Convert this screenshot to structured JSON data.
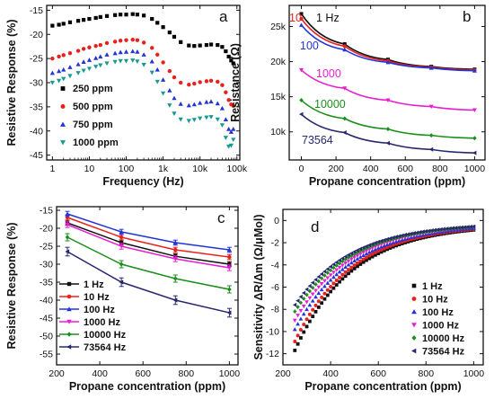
{
  "chart_data": [
    {
      "panel": "a",
      "type": "scatter",
      "title": "",
      "xlabel": "Frequency (Hz)",
      "ylabel": "Resistive Response (%)",
      "xscale": "log",
      "xlim": [
        0.7,
        120000
      ],
      "ylim": [
        -46,
        -14
      ],
      "xtick_values": [
        1,
        10,
        100,
        1000,
        10000,
        100000
      ],
      "xticks": [
        "1",
        "10",
        "100",
        "1k",
        "10k",
        "100k"
      ],
      "ytick_values": [
        -45,
        -40,
        -35,
        -30,
        -25,
        -20,
        -15
      ],
      "yticks": [
        "-45",
        "-40",
        "-35",
        "-30",
        "-25",
        "-20",
        "-15"
      ],
      "legend_position": "bottom-left",
      "x": [
        1,
        1.5,
        2,
        3,
        5,
        7,
        10,
        15,
        20,
        30,
        50,
        70,
        100,
        150,
        200,
        300,
        500,
        700,
        1000,
        1500,
        2000,
        3000,
        5000,
        7000,
        10000,
        15000,
        20000,
        30000,
        40000,
        50000,
        60000,
        70000,
        80000
      ],
      "series": [
        {
          "name": "250 ppm",
          "color": "#000000",
          "marker": "square",
          "values": [
            -18.2,
            -18.0,
            -17.8,
            -17.5,
            -17.2,
            -17.0,
            -16.8,
            -16.6,
            -16.4,
            -16.2,
            -16.0,
            -15.9,
            -15.9,
            -15.8,
            -15.9,
            -16.1,
            -16.8,
            -17.6,
            -18.5,
            -19.6,
            -20.5,
            -21.6,
            -22.3,
            -22.4,
            -22.3,
            -22.2,
            -22.1,
            -22.2,
            -22.6,
            -23.5,
            -24.6,
            -25.4,
            -26.0
          ]
        },
        {
          "name": "500 ppm",
          "color": "#e8211d",
          "marker": "circle",
          "values": [
            -25.0,
            -24.6,
            -24.3,
            -23.9,
            -23.4,
            -23.0,
            -22.7,
            -22.4,
            -22.2,
            -21.8,
            -21.5,
            -21.3,
            -21.2,
            -21.1,
            -21.2,
            -21.7,
            -22.8,
            -24.2,
            -25.8,
            -27.6,
            -28.9,
            -30.0,
            -30.4,
            -30.2,
            -29.9,
            -29.7,
            -29.6,
            -29.8,
            -30.5,
            -32.0,
            -33.6,
            -34.5,
            -34.8
          ]
        },
        {
          "name": "750 ppm",
          "color": "#2233d8",
          "marker": "triangle-up",
          "values": [
            -28.0,
            -27.6,
            -27.3,
            -26.8,
            -26.2,
            -25.7,
            -25.3,
            -24.9,
            -24.6,
            -24.2,
            -23.9,
            -23.7,
            -23.6,
            -23.5,
            -23.6,
            -24.2,
            -25.6,
            -27.3,
            -29.4,
            -31.6,
            -33.2,
            -34.4,
            -34.7,
            -34.5,
            -34.2,
            -34.0,
            -33.9,
            -34.3,
            -35.3,
            -37.6,
            -39.6,
            -40.2,
            -39.6
          ]
        },
        {
          "name": "1000 ppm",
          "color": "#179a8e",
          "marker": "triangle-down",
          "values": [
            -30.0,
            -29.6,
            -29.2,
            -28.6,
            -28.0,
            -27.5,
            -27.1,
            -26.7,
            -26.4,
            -26.0,
            -25.7,
            -25.5,
            -25.5,
            -25.4,
            -25.6,
            -26.3,
            -27.9,
            -29.8,
            -32.2,
            -34.7,
            -36.4,
            -37.6,
            -37.9,
            -37.7,
            -37.4,
            -37.2,
            -37.1,
            -37.6,
            -38.8,
            -41.4,
            -43.2,
            -43.0,
            -41.8
          ]
        }
      ]
    },
    {
      "panel": "b",
      "type": "line",
      "title": "",
      "xlabel": "Propane concentration (ppm)",
      "ylabel": "Resistance (Ω)",
      "xlim": [
        -70,
        1060
      ],
      "ylim": [
        6000,
        28000
      ],
      "xticks": [
        0,
        200,
        400,
        600,
        800,
        1000
      ],
      "ytick_values": [
        10000,
        15000,
        20000,
        25000
      ],
      "yticks": [
        "10k",
        "15k",
        "20k",
        "25k"
      ],
      "x": [
        0,
        250,
        500,
        750,
        1000
      ],
      "series": [
        {
          "name": "1 Hz",
          "color": "#111111",
          "marker": "square",
          "values": [
            26800,
            22500,
            20300,
            19300,
            18900
          ]
        },
        {
          "name": "10",
          "color": "#e8211d",
          "marker": "circle",
          "values": [
            26100,
            22200,
            20100,
            19200,
            18800
          ]
        },
        {
          "name": "100",
          "color": "#2233d8",
          "marker": "triangle-up",
          "values": [
            25200,
            21700,
            19900,
            19100,
            18700
          ]
        },
        {
          "name": "1000",
          "color": "#e81fd0",
          "marker": "triangle-down",
          "values": [
            18800,
            16200,
            14500,
            13600,
            13100
          ]
        },
        {
          "name": "10000",
          "color": "#1a8f1a",
          "marker": "diamond",
          "values": [
            14500,
            11900,
            10400,
            9500,
            9100
          ]
        },
        {
          "name": "73564",
          "color": "#28286e",
          "marker": "triangle-left",
          "values": [
            12500,
            9900,
            8400,
            7500,
            7000
          ]
        }
      ]
    },
    {
      "panel": "c",
      "type": "line",
      "title": "",
      "xlabel": "Propane concentration (ppm)",
      "ylabel": "Resistive Response (%)",
      "xlim": [
        200,
        1040
      ],
      "ylim": [
        -58,
        -14
      ],
      "xticks": [
        200,
        400,
        600,
        800,
        1000
      ],
      "yticks": [
        -55,
        -50,
        -45,
        -40,
        -35,
        -30,
        -25,
        -20,
        -15
      ],
      "legend_position": "bottom-left",
      "x": [
        250,
        500,
        750,
        1000
      ],
      "series": [
        {
          "name": "1 Hz",
          "color": "#111111",
          "marker": "square",
          "values": [
            -18.5,
            -24.0,
            -27.8,
            -30.0
          ],
          "err": [
            0.7,
            0.7,
            0.7,
            0.7
          ]
        },
        {
          "name": "10 Hz",
          "color": "#e8211d",
          "marker": "circle",
          "values": [
            -17.0,
            -22.5,
            -26.0,
            -28.0
          ],
          "err": [
            0.7,
            0.7,
            0.7,
            0.7
          ]
        },
        {
          "name": "100 Hz",
          "color": "#2233d8",
          "marker": "triangle-up",
          "values": [
            -16.0,
            -21.0,
            -24.0,
            -26.0
          ],
          "err": [
            0.7,
            0.7,
            0.7,
            0.7
          ]
        },
        {
          "name": "1000 Hz",
          "color": "#e81fd0",
          "marker": "triangle-down",
          "values": [
            -19.0,
            -25.0,
            -28.5,
            -31.0
          ],
          "err": [
            0.8,
            0.8,
            0.8,
            0.8
          ]
        },
        {
          "name": "10000 Hz",
          "color": "#1a8f1a",
          "marker": "diamond",
          "values": [
            -22.5,
            -30.0,
            -34.0,
            -37.0
          ],
          "err": [
            1.0,
            1.0,
            1.0,
            1.0
          ]
        },
        {
          "name": "73564 Hz",
          "color": "#28286e",
          "marker": "triangle-left",
          "values": [
            -26.5,
            -35.0,
            -40.0,
            -43.5
          ],
          "err": [
            1.2,
            1.2,
            1.2,
            1.2
          ]
        }
      ]
    },
    {
      "panel": "d",
      "type": "scatter",
      "title": "",
      "xlabel": "Propane concentration (ppm)",
      "ylabel": "Sensitivity ΔR/Δm (Ω/μMol)",
      "xlim": [
        200,
        1040
      ],
      "ylim": [
        -13,
        1
      ],
      "xticks": [
        200,
        400,
        600,
        800,
        1000
      ],
      "yticks": [
        0,
        -2,
        -4,
        -6,
        -8,
        -10,
        -12
      ],
      "legend_position": "center-right",
      "x_start": 250,
      "x_end": 1000,
      "x_step": 12.5,
      "series": [
        {
          "name": "1 Hz",
          "color": "#111111",
          "marker": "square",
          "v_start": -11.7,
          "v_end": -0.85,
          "decay": 0.0042
        },
        {
          "name": "10 Hz",
          "color": "#e8211d",
          "marker": "circle",
          "v_start": -10.9,
          "v_end": -0.78,
          "decay": 0.0042
        },
        {
          "name": "100 Hz",
          "color": "#2233d8",
          "marker": "triangle-up",
          "v_start": -9.8,
          "v_end": -0.7,
          "decay": 0.0042
        },
        {
          "name": "1000 Hz",
          "color": "#e81fd0",
          "marker": "triangle-down",
          "v_start": -9.0,
          "v_end": -0.64,
          "decay": 0.0042
        },
        {
          "name": "10000 Hz",
          "color": "#1a8f1a",
          "marker": "diamond",
          "v_start": -8.2,
          "v_end": -0.58,
          "decay": 0.0042
        },
        {
          "name": "73564 Hz",
          "color": "#28286e",
          "marker": "triangle-left",
          "v_start": -7.6,
          "v_end": -0.55,
          "decay": 0.0042
        }
      ]
    }
  ]
}
